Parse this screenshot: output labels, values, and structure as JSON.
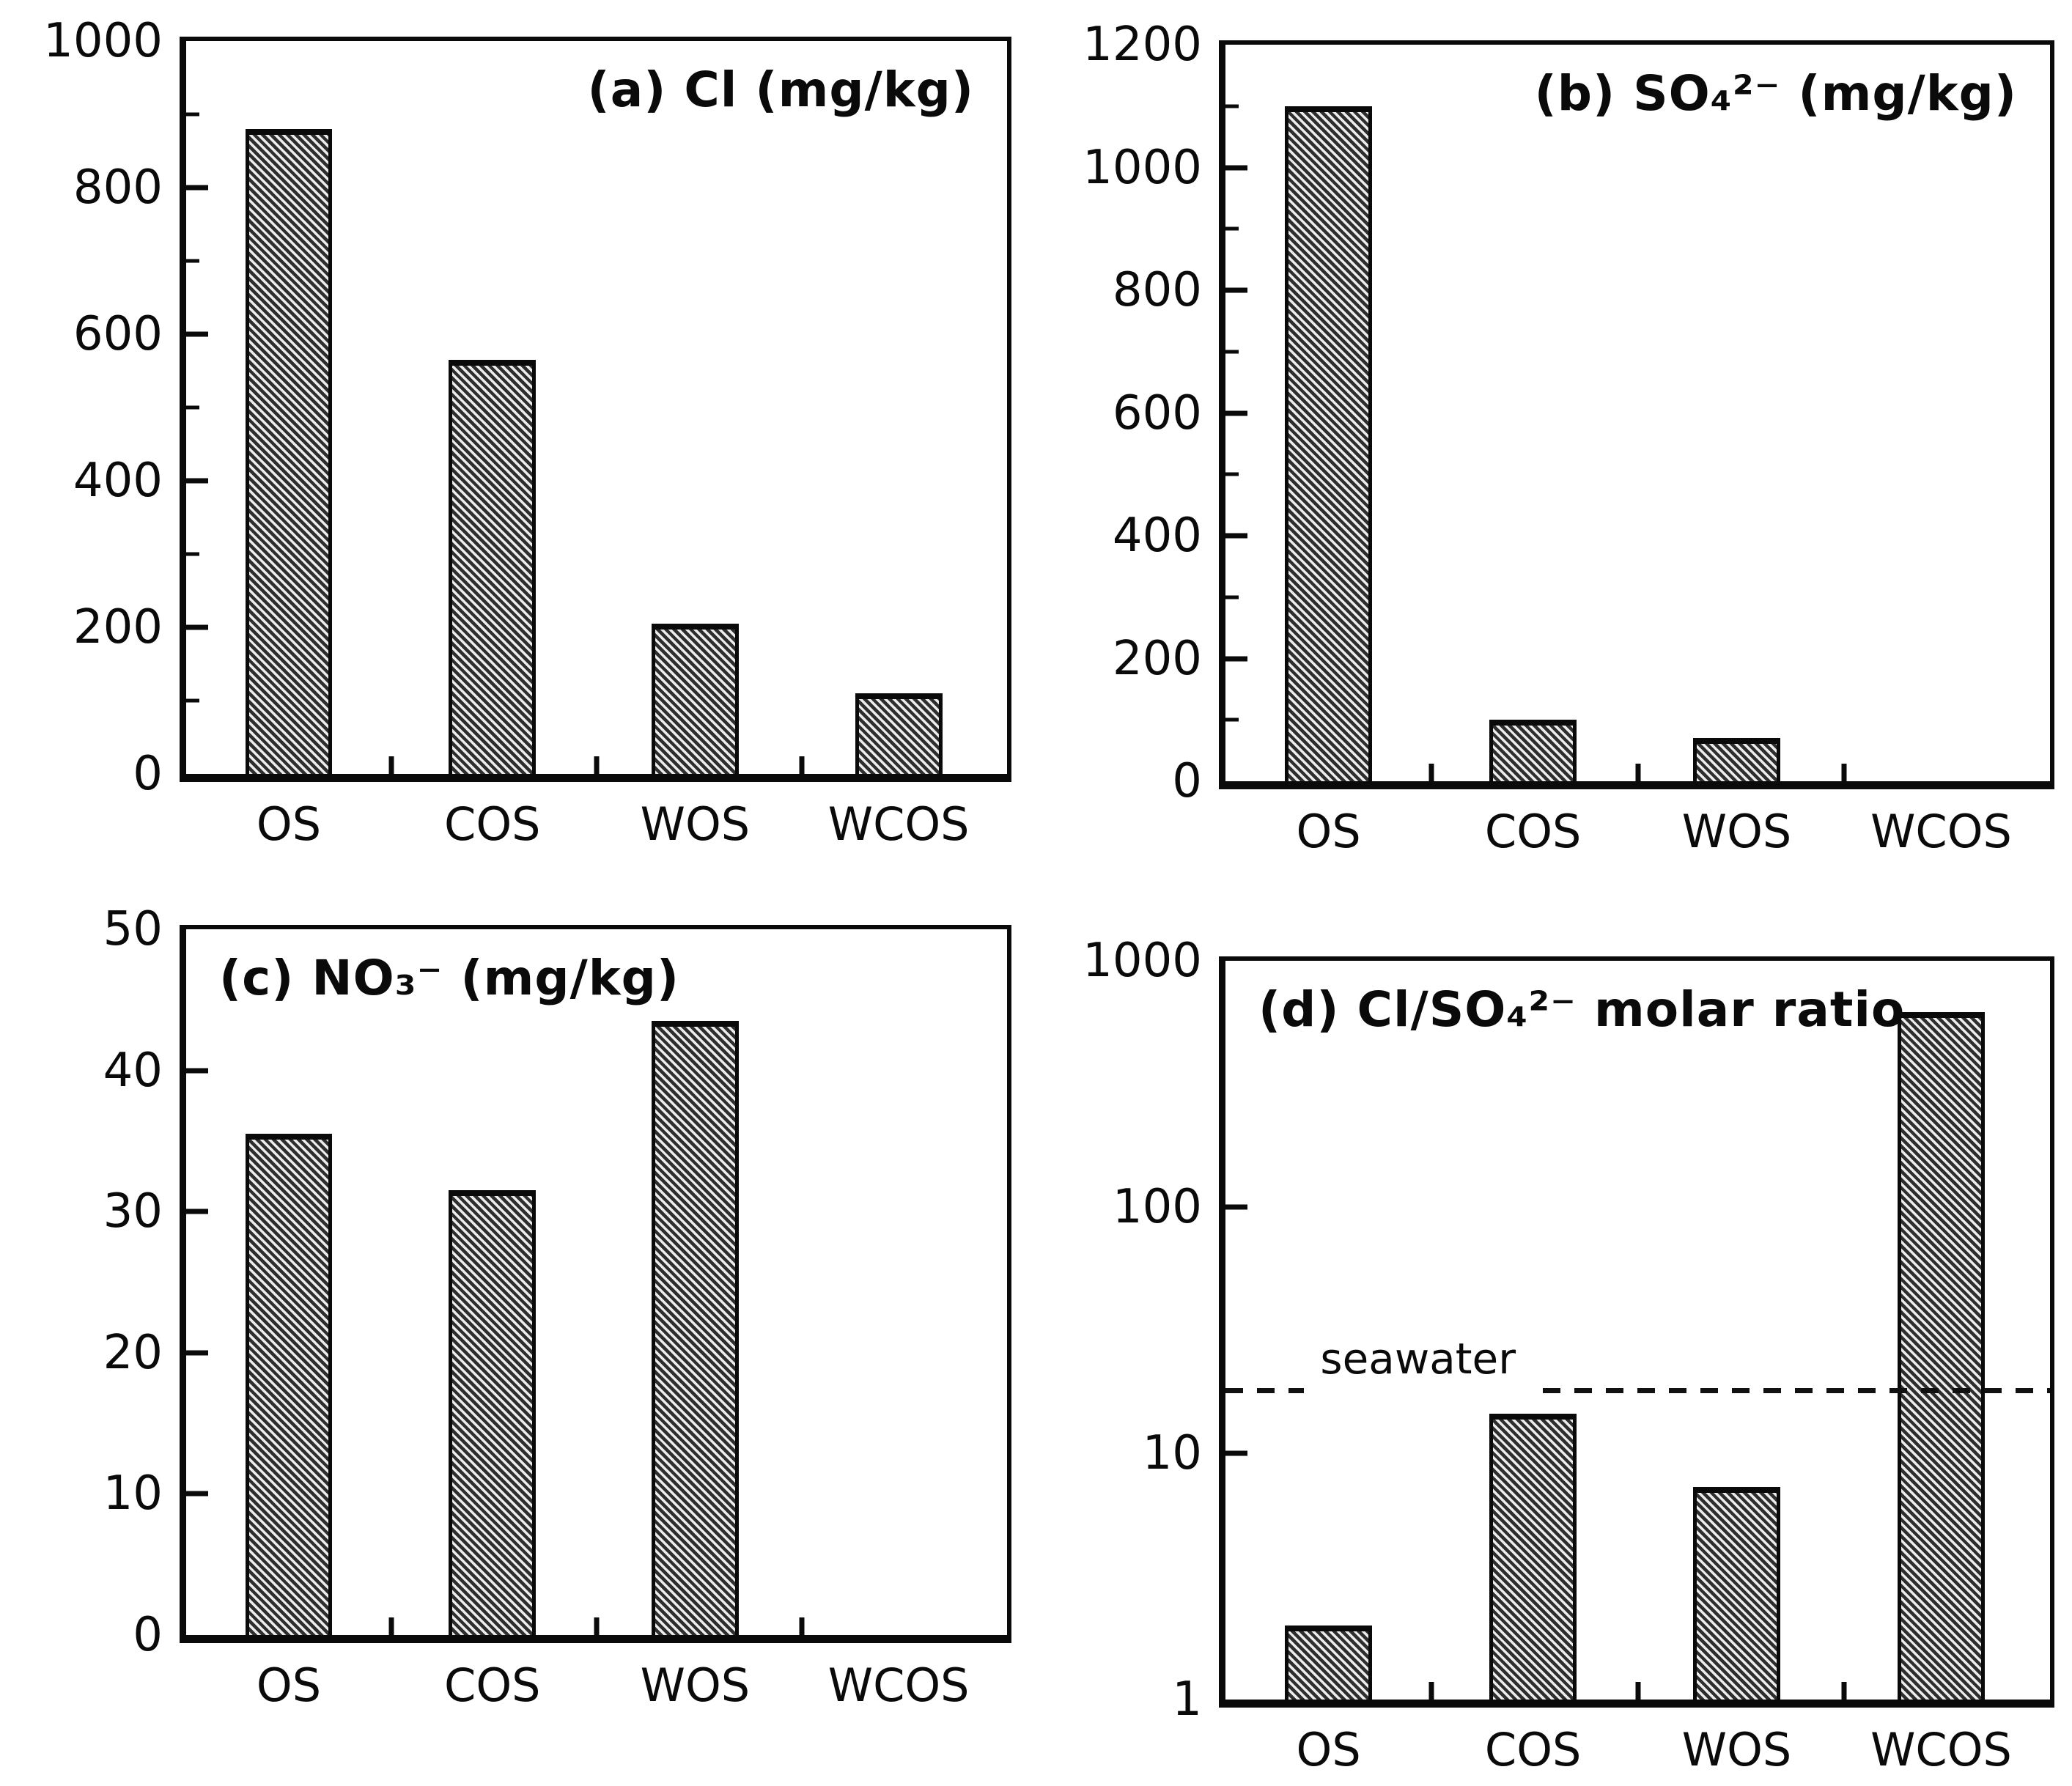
{
  "figure": {
    "background": "#ffffff",
    "ink_color": "#0a0a0a",
    "bar_fill": "diagonal-hatch"
  },
  "chart_data": [
    {
      "type": "bar",
      "panel": "a",
      "title": "(a) Cl (mg/kg)",
      "title_align": "right",
      "categories": [
        "OS",
        "COS",
        "WOS",
        "WCOS"
      ],
      "values": [
        880,
        565,
        205,
        110
      ],
      "yscale": "linear",
      "ylim": [
        0,
        1000
      ],
      "ytick_values": [
        0,
        200,
        400,
        600,
        800,
        1000
      ],
      "ytick_labels": [
        "0",
        "200",
        "400",
        "600",
        "800",
        "1000"
      ],
      "yminor_ticks": [
        100,
        300,
        500,
        700,
        900
      ],
      "grid": false,
      "legend": null
    },
    {
      "type": "bar",
      "panel": "b",
      "title": "(b) SO₄²⁻ (mg/kg)",
      "title_align": "right",
      "categories": [
        "OS",
        "COS",
        "WOS",
        "WCOS"
      ],
      "values": [
        1100,
        100,
        70,
        0
      ],
      "yscale": "linear",
      "ylim": [
        0,
        1200
      ],
      "ytick_values": [
        0,
        200,
        400,
        600,
        800,
        1000,
        1200
      ],
      "ytick_labels": [
        "0",
        "200",
        "400",
        "600",
        "800",
        "1000",
        "1200"
      ],
      "yminor_ticks": [
        100,
        300,
        500,
        700,
        900,
        1100
      ],
      "grid": false,
      "legend": null
    },
    {
      "type": "bar",
      "panel": "c",
      "title": "(c) NO₃⁻ (mg/kg)",
      "title_align": "left",
      "categories": [
        "OS",
        "COS",
        "WOS",
        "WCOS"
      ],
      "values": [
        35.5,
        31.5,
        43.5,
        0
      ],
      "yscale": "linear",
      "ylim": [
        0,
        50
      ],
      "ytick_values": [
        0,
        10,
        20,
        30,
        40,
        50
      ],
      "ytick_labels": [
        "0",
        "10",
        "20",
        "30",
        "40",
        "50"
      ],
      "yminor_ticks": [],
      "grid": false,
      "legend": null
    },
    {
      "type": "bar",
      "panel": "d",
      "title": "(d) Cl/SO₄²⁻ molar ratio",
      "title_align": "left",
      "categories": [
        "OS",
        "COS",
        "WOS",
        "WCOS"
      ],
      "values": [
        2,
        14.5,
        7.3,
        620
      ],
      "yscale": "log",
      "ylim": [
        1,
        1000
      ],
      "ytick_values": [
        1,
        10,
        100,
        1000
      ],
      "ytick_labels": [
        "1",
        "10",
        "100",
        "1000"
      ],
      "yminor_ticks": [],
      "grid": false,
      "legend": null,
      "annotations": [
        {
          "type": "hline",
          "label": "seawater",
          "value": 18,
          "line_style": "dashed"
        }
      ]
    }
  ]
}
